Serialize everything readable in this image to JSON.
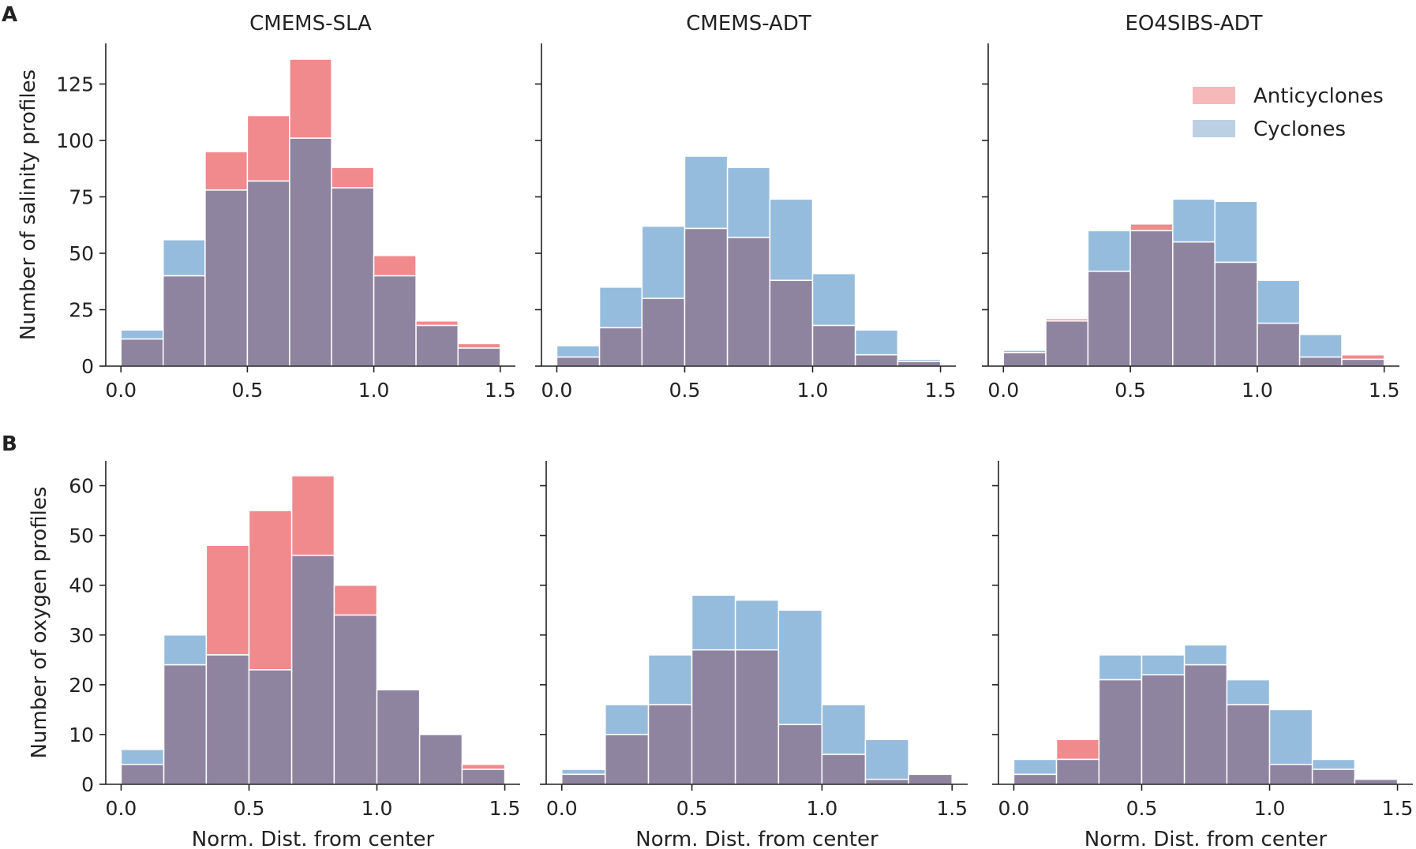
{
  "figure": {
    "panel_labels": [
      "A",
      "B"
    ],
    "colors": {
      "anticyclones": "#f08a8d",
      "cyclones": "#96bcdd",
      "overlap": "#8f84a0",
      "bar_edge": "#ffffff",
      "axis": "#222222"
    },
    "legend": {
      "placement": "top-right of panel A3",
      "items": [
        {
          "label": "Anticyclones",
          "color": "#f5b9ba"
        },
        {
          "label": "Cyclones",
          "color": "#bcd0e4"
        }
      ]
    }
  },
  "chart_data": [
    {
      "type": "bar",
      "id": "A1",
      "row": "A",
      "title": "CMEMS-SLA",
      "ylabel": "Number of salinity profiles",
      "xlabel": "",
      "bin_edges": [
        0,
        0.167,
        0.333,
        0.5,
        0.667,
        0.833,
        1.0,
        1.167,
        1.333,
        1.5
      ],
      "xlim": [
        -0.06,
        1.56
      ],
      "ylim": [
        0,
        143
      ],
      "xticks": [
        0,
        0.5,
        1.0,
        1.5
      ],
      "xtick_labels": [
        "0.0",
        "0.5",
        "1.0",
        "1.5"
      ],
      "yticks": [
        0,
        25,
        50,
        75,
        100,
        125
      ],
      "ytick_labels": [
        "0",
        "25",
        "50",
        "75",
        "100",
        "125"
      ],
      "series": [
        {
          "name": "Anticyclones",
          "values": [
            12,
            40,
            95,
            111,
            136,
            88,
            49,
            20,
            10
          ]
        },
        {
          "name": "Cyclones",
          "values": [
            16,
            56,
            78,
            82,
            101,
            79,
            40,
            18,
            8
          ]
        }
      ]
    },
    {
      "type": "bar",
      "id": "A2",
      "row": "A",
      "title": "CMEMS-ADT",
      "ylabel": "",
      "xlabel": "",
      "bin_edges": [
        0,
        0.167,
        0.333,
        0.5,
        0.667,
        0.833,
        1.0,
        1.167,
        1.333,
        1.5
      ],
      "xlim": [
        -0.06,
        1.56
      ],
      "ylim": [
        0,
        143
      ],
      "xticks": [
        0,
        0.5,
        1.0,
        1.5
      ],
      "xtick_labels": [
        "0.0",
        "0.5",
        "1.0",
        "1.5"
      ],
      "yticks": [
        0,
        25,
        50,
        75,
        100,
        125
      ],
      "ytick_labels": [],
      "series": [
        {
          "name": "Anticyclones",
          "values": [
            4,
            17,
            30,
            61,
            57,
            38,
            18,
            5,
            2
          ]
        },
        {
          "name": "Cyclones",
          "values": [
            9,
            35,
            62,
            93,
            88,
            74,
            41,
            16,
            3
          ]
        }
      ]
    },
    {
      "type": "bar",
      "id": "A3",
      "row": "A",
      "title": "EO4SIBS-ADT",
      "ylabel": "",
      "xlabel": "",
      "bin_edges": [
        0,
        0.167,
        0.333,
        0.5,
        0.667,
        0.833,
        1.0,
        1.167,
        1.333,
        1.5
      ],
      "xlim": [
        -0.06,
        1.56
      ],
      "ylim": [
        0,
        143
      ],
      "xticks": [
        0,
        0.5,
        1.0,
        1.5
      ],
      "xtick_labels": [
        "0.0",
        "0.5",
        "1.0",
        "1.5"
      ],
      "yticks": [
        0,
        25,
        50,
        75,
        100,
        125
      ],
      "ytick_labels": [],
      "series": [
        {
          "name": "Anticyclones",
          "values": [
            6,
            21,
            42,
            63,
            55,
            46,
            19,
            4,
            5
          ]
        },
        {
          "name": "Cyclones",
          "values": [
            7,
            20,
            60,
            60,
            74,
            73,
            38,
            14,
            3
          ]
        }
      ]
    },
    {
      "type": "bar",
      "id": "B1",
      "row": "B",
      "title": "",
      "ylabel": "Number of oxygen profiles",
      "xlabel": "Norm. Dist. from center",
      "bin_edges": [
        0,
        0.167,
        0.333,
        0.5,
        0.667,
        0.833,
        1.0,
        1.167,
        1.333,
        1.5
      ],
      "xlim": [
        -0.06,
        1.56
      ],
      "ylim": [
        0,
        65
      ],
      "xticks": [
        0,
        0.5,
        1.0,
        1.5
      ],
      "xtick_labels": [
        "0.0",
        "0.5",
        "1.0",
        "1.5"
      ],
      "yticks": [
        0,
        10,
        20,
        30,
        40,
        50,
        60
      ],
      "ytick_labels": [
        "0",
        "10",
        "20",
        "30",
        "40",
        "50",
        "60"
      ],
      "series": [
        {
          "name": "Anticyclones",
          "values": [
            4,
            24,
            48,
            55,
            62,
            40,
            19,
            10,
            4
          ]
        },
        {
          "name": "Cyclones",
          "values": [
            7,
            30,
            26,
            23,
            46,
            34,
            19,
            10,
            3
          ]
        }
      ]
    },
    {
      "type": "bar",
      "id": "B2",
      "row": "B",
      "title": "",
      "ylabel": "",
      "xlabel": "Norm. Dist. from center",
      "bin_edges": [
        0,
        0.167,
        0.333,
        0.5,
        0.667,
        0.833,
        1.0,
        1.167,
        1.333,
        1.5
      ],
      "xlim": [
        -0.06,
        1.56
      ],
      "ylim": [
        0,
        65
      ],
      "xticks": [
        0,
        0.5,
        1.0,
        1.5
      ],
      "xtick_labels": [
        "0.0",
        "0.5",
        "1.0",
        "1.5"
      ],
      "yticks": [
        0,
        10,
        20,
        30,
        40,
        50,
        60
      ],
      "ytick_labels": [],
      "series": [
        {
          "name": "Anticyclones",
          "values": [
            2,
            10,
            16,
            27,
            27,
            12,
            6,
            1,
            2
          ]
        },
        {
          "name": "Cyclones",
          "values": [
            3,
            16,
            26,
            38,
            37,
            35,
            16,
            9,
            2
          ]
        }
      ]
    },
    {
      "type": "bar",
      "id": "B3",
      "row": "B",
      "title": "",
      "ylabel": "",
      "xlabel": "Norm. Dist. from center",
      "bin_edges": [
        0,
        0.167,
        0.333,
        0.5,
        0.667,
        0.833,
        1.0,
        1.167,
        1.333,
        1.5
      ],
      "xlim": [
        -0.06,
        1.56
      ],
      "ylim": [
        0,
        65
      ],
      "xticks": [
        0,
        0.5,
        1.0,
        1.5
      ],
      "xtick_labels": [
        "0.0",
        "0.5",
        "1.0",
        "1.5"
      ],
      "yticks": [
        0,
        10,
        20,
        30,
        40,
        50,
        60
      ],
      "ytick_labels": [],
      "series": [
        {
          "name": "Anticyclones",
          "values": [
            2,
            9,
            21,
            22,
            24,
            16,
            4,
            3,
            1
          ]
        },
        {
          "name": "Cyclones",
          "values": [
            5,
            5,
            26,
            26,
            28,
            21,
            15,
            5,
            1
          ]
        }
      ]
    }
  ]
}
